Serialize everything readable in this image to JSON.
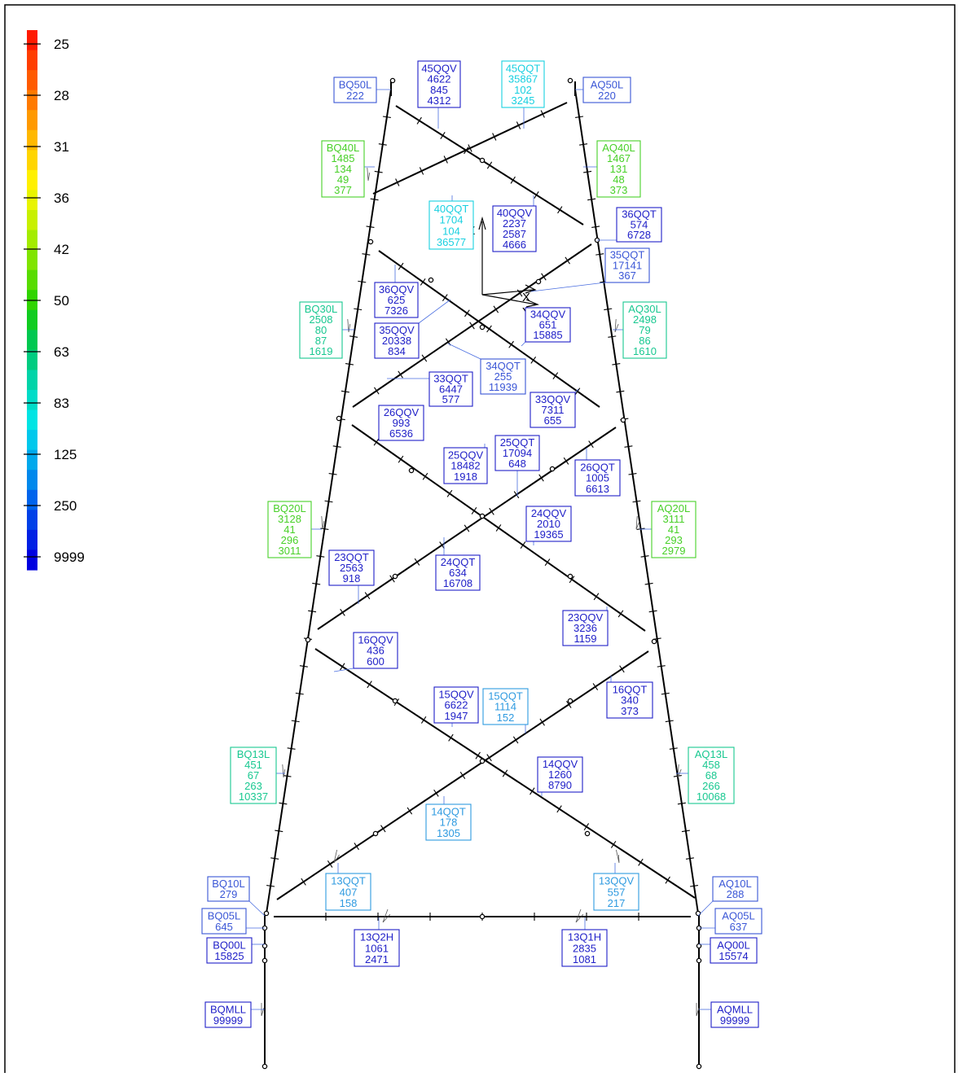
{
  "colors": {
    "frame": "#000000",
    "tower": "#000000",
    "leader": "#4a6ee0",
    "tone_blue": "#2020c8",
    "tone_midblue": "#3a56d6",
    "tone_lightblue": "#2e9ae0",
    "tone_cyan": "#18d0e0",
    "tone_teal": "#18c890",
    "tone_green": "#48d028"
  },
  "legend": {
    "bands": [
      "#ff1a00",
      "#ff3d00",
      "#ff5a00",
      "#ff7a00",
      "#ff9900",
      "#ffb800",
      "#ffd500",
      "#fff000",
      "#e8f400",
      "#c8f000",
      "#a4ec00",
      "#80e400",
      "#58dc00",
      "#30d400",
      "#10cc20",
      "#00c850",
      "#00cc80",
      "#00d4a8",
      "#00dcc8",
      "#00e4e4",
      "#00c8ec",
      "#00a8ec",
      "#0088ec",
      "#0064ec",
      "#0040e8",
      "#0020e4",
      "#0000e0"
    ],
    "labels": [
      "25",
      "28",
      "31",
      "36",
      "42",
      "50",
      "63",
      "83",
      "125",
      "250",
      "9999"
    ]
  },
  "axes": {
    "z": "Z",
    "x": "X",
    "y": "Y"
  },
  "labels": [
    {
      "id": "BQ50L",
      "tone": "midblue",
      "lines": [
        "BQ50L",
        "222"
      ]
    },
    {
      "id": "45QQV",
      "tone": "blue",
      "lines": [
        "45QQV",
        "4622",
        "845",
        "4312"
      ]
    },
    {
      "id": "45QQT",
      "tone": "cyan",
      "lines": [
        "45QQT",
        "35867",
        "102",
        "3245"
      ]
    },
    {
      "id": "AQ50L",
      "tone": "midblue",
      "lines": [
        "AQ50L",
        "220"
      ]
    },
    {
      "id": "BQ40L",
      "tone": "green",
      "lines": [
        "BQ40L",
        "1485",
        "134",
        "49",
        "377"
      ]
    },
    {
      "id": "AQ40L",
      "tone": "green",
      "lines": [
        "AQ40L",
        "1467",
        "131",
        "48",
        "373"
      ]
    },
    {
      "id": "40QQT",
      "tone": "cyan",
      "lines": [
        "40QQT",
        "1704",
        "104",
        "36577"
      ]
    },
    {
      "id": "40QQV",
      "tone": "blue",
      "lines": [
        "40QQV",
        "2237",
        "2587",
        "4666"
      ]
    },
    {
      "id": "36QQT",
      "tone": "blue",
      "lines": [
        "36QQT",
        "574",
        "6728"
      ]
    },
    {
      "id": "35QQT",
      "tone": "midblue",
      "lines": [
        "35QQT",
        "17141",
        "367"
      ]
    },
    {
      "id": "36QQV",
      "tone": "blue",
      "lines": [
        "36QQV",
        "625",
        "7326"
      ]
    },
    {
      "id": "BQ30L",
      "tone": "teal",
      "lines": [
        "BQ30L",
        "2508",
        "80",
        "87",
        "1619"
      ]
    },
    {
      "id": "AQ30L",
      "tone": "teal",
      "lines": [
        "AQ30L",
        "2498",
        "79",
        "86",
        "1610"
      ]
    },
    {
      "id": "34QQV",
      "tone": "blue",
      "lines": [
        "34QQV",
        "651",
        "15885"
      ]
    },
    {
      "id": "35QQV",
      "tone": "blue",
      "lines": [
        "35QQV",
        "20338",
        "834"
      ]
    },
    {
      "id": "34QQT",
      "tone": "midblue",
      "lines": [
        "34QQT",
        "255",
        "11939"
      ]
    },
    {
      "id": "33QQT",
      "tone": "blue",
      "lines": [
        "33QQT",
        "6447",
        "577"
      ]
    },
    {
      "id": "33QQV",
      "tone": "blue",
      "lines": [
        "33QQV",
        "7311",
        "655"
      ]
    },
    {
      "id": "26QQV",
      "tone": "blue",
      "lines": [
        "26QQV",
        "993",
        "6536"
      ]
    },
    {
      "id": "25QQT",
      "tone": "blue",
      "lines": [
        "25QQT",
        "17094",
        "648"
      ]
    },
    {
      "id": "25QQV",
      "tone": "blue",
      "lines": [
        "25QQV",
        "18482",
        "1918"
      ]
    },
    {
      "id": "26QQT",
      "tone": "blue",
      "lines": [
        "26QQT",
        "1005",
        "6613"
      ]
    },
    {
      "id": "BQ20L",
      "tone": "green",
      "lines": [
        "BQ20L",
        "3128",
        "41",
        "296",
        "3011"
      ]
    },
    {
      "id": "AQ20L",
      "tone": "green",
      "lines": [
        "AQ20L",
        "3111",
        "41",
        "293",
        "2979"
      ]
    },
    {
      "id": "24QQV",
      "tone": "blue",
      "lines": [
        "24QQV",
        "2010",
        "19365"
      ]
    },
    {
      "id": "23QQT",
      "tone": "blue",
      "lines": [
        "23QQT",
        "2563",
        "918"
      ]
    },
    {
      "id": "24QQT",
      "tone": "blue",
      "lines": [
        "24QQT",
        "634",
        "16708"
      ]
    },
    {
      "id": "23QQV",
      "tone": "blue",
      "lines": [
        "23QQV",
        "3236",
        "1159"
      ]
    },
    {
      "id": "16QQV",
      "tone": "blue",
      "lines": [
        "16QQV",
        "436",
        "600"
      ]
    },
    {
      "id": "15QQV",
      "tone": "blue",
      "lines": [
        "15QQV",
        "6622",
        "1947"
      ]
    },
    {
      "id": "15QQT",
      "tone": "lightblue",
      "lines": [
        "15QQT",
        "1114",
        "152"
      ]
    },
    {
      "id": "16QQT",
      "tone": "blue",
      "lines": [
        "16QQT",
        "340",
        "373"
      ]
    },
    {
      "id": "BQ13L",
      "tone": "teal",
      "lines": [
        "BQ13L",
        "451",
        "67",
        "263",
        "10337"
      ]
    },
    {
      "id": "AQ13L",
      "tone": "teal",
      "lines": [
        "AQ13L",
        "458",
        "68",
        "266",
        "10068"
      ]
    },
    {
      "id": "14QQV",
      "tone": "blue",
      "lines": [
        "14QQV",
        "1260",
        "8790"
      ]
    },
    {
      "id": "14QQT",
      "tone": "lightblue",
      "lines": [
        "14QQT",
        "178",
        "1305"
      ]
    },
    {
      "id": "BQ10L",
      "tone": "midblue",
      "lines": [
        "BQ10L",
        "279"
      ]
    },
    {
      "id": "13QQT",
      "tone": "lightblue",
      "lines": [
        "13QQT",
        "407",
        "158"
      ]
    },
    {
      "id": "13QQV",
      "tone": "lightblue",
      "lines": [
        "13QQV",
        "557",
        "217"
      ]
    },
    {
      "id": "AQ10L",
      "tone": "midblue",
      "lines": [
        "AQ10L",
        "288"
      ]
    },
    {
      "id": "BQ05L",
      "tone": "midblue",
      "lines": [
        "BQ05L",
        "645"
      ]
    },
    {
      "id": "AQ05L",
      "tone": "midblue",
      "lines": [
        "AQ05L",
        "637"
      ]
    },
    {
      "id": "13Q2H",
      "tone": "blue",
      "lines": [
        "13Q2H",
        "1061",
        "2471"
      ]
    },
    {
      "id": "13Q1H",
      "tone": "blue",
      "lines": [
        "13Q1H",
        "2835",
        "1081"
      ]
    },
    {
      "id": "BQ00L",
      "tone": "blue",
      "lines": [
        "BQ00L",
        "15825"
      ]
    },
    {
      "id": "AQ00L",
      "tone": "blue",
      "lines": [
        "AQ00L",
        "15574"
      ]
    },
    {
      "id": "BQMLL",
      "tone": "blue",
      "lines": [
        "BQMLL",
        "99999"
      ]
    },
    {
      "id": "AQMLL",
      "tone": "blue",
      "lines": [
        "AQMLL",
        "99999"
      ]
    }
  ]
}
